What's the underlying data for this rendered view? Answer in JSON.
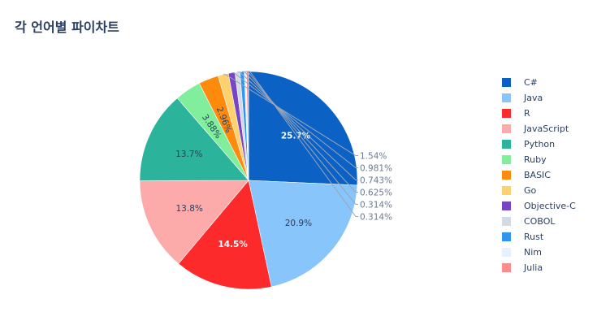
{
  "chart_data": {
    "type": "pie",
    "title": "각 언어별 파이차트",
    "categories": [
      "C#",
      "Java",
      "R",
      "JavaScript",
      "Python",
      "Ruby",
      "BASIC",
      "Go",
      "Objective-C",
      "COBOL",
      "Rust",
      "Nim",
      "Julia"
    ],
    "values": [
      25.7,
      20.9,
      14.5,
      13.8,
      13.7,
      3.88,
      2.96,
      1.54,
      0.981,
      0.743,
      0.625,
      0.314,
      0.314
    ],
    "labels": [
      "25.7%",
      "20.9%",
      "14.5%",
      "13.8%",
      "13.7%",
      "3.88%",
      "2.96%",
      "1.54%",
      "0.981%",
      "0.743%",
      "0.625%",
      "0.314%",
      "0.314%"
    ],
    "colors": [
      "#0b62c4",
      "#87c5fa",
      "#fc2a2a",
      "#fdaaaa",
      "#2bb39b",
      "#80ee9b",
      "#fe8a0e",
      "#fed16f",
      "#7644c4",
      "#d3dae5",
      "#2f95f0",
      "#e3f2fd",
      "#fb8c8c"
    ],
    "label_colors": [
      "#ffffff",
      "#2a3f5f",
      "#ffffff",
      "#2a3f5f",
      "#2a3f5f",
      "#2a3f5f",
      "#2a3f5f",
      "#2a3f5f",
      "#2a3f5f",
      "#2a3f5f",
      "#2a3f5f",
      "#2a3f5f",
      "#2a3f5f"
    ],
    "legend_position": "right",
    "legend_order": [
      "C#",
      "Java",
      "R",
      "JavaScript",
      "Python",
      "Ruby",
      "BASIC",
      "Go",
      "Objective-C",
      "COBOL",
      "Rust",
      "Nim",
      "Julia"
    ]
  }
}
